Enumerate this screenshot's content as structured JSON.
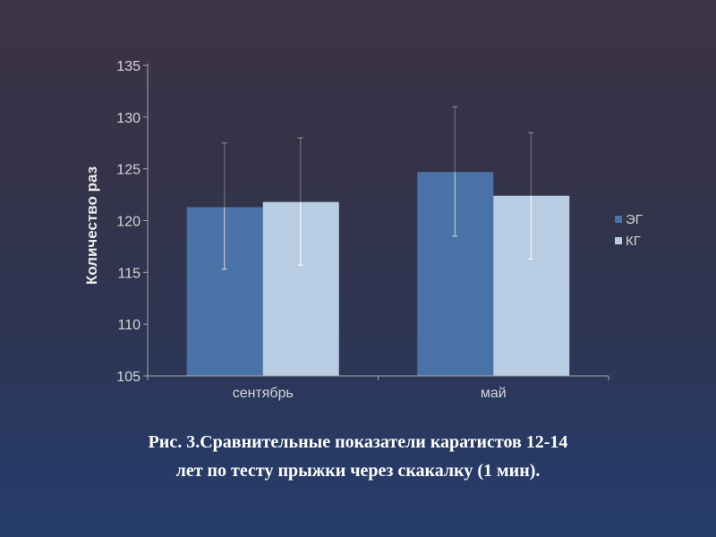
{
  "chart_data": {
    "type": "bar",
    "categories": [
      "сентябрь",
      "май"
    ],
    "series": [
      {
        "name": "ЭГ",
        "values": [
          121.3,
          124.7
        ],
        "error_low": [
          115.3,
          118.5
        ],
        "error_high": [
          127.5,
          131.0
        ],
        "color": "#4a72a6"
      },
      {
        "name": "КГ",
        "values": [
          121.8,
          122.4
        ],
        "error_low": [
          115.7,
          116.3
        ],
        "error_high": [
          128.0,
          128.5
        ],
        "color": "#b8cce4"
      }
    ],
    "ylabel": "Количество раз",
    "ylim": [
      105,
      135
    ],
    "yticks": [
      "105",
      "110",
      "115",
      "120",
      "125",
      "130",
      "135"
    ],
    "legend_position": "right",
    "grid": false
  },
  "caption": {
    "line1": "Рис. 3.Сравнительные показатели каратистов 12-14",
    "line2": "лет по тесту прыжки через скакалку (1 мин)."
  },
  "colors": {
    "background_top": "#3d3346",
    "background_bottom": "#263d6c",
    "axis": "#a8a8a8",
    "error_bar_on_dark": "#d0d0d0",
    "error_bar_on_light": "#ffffff"
  }
}
